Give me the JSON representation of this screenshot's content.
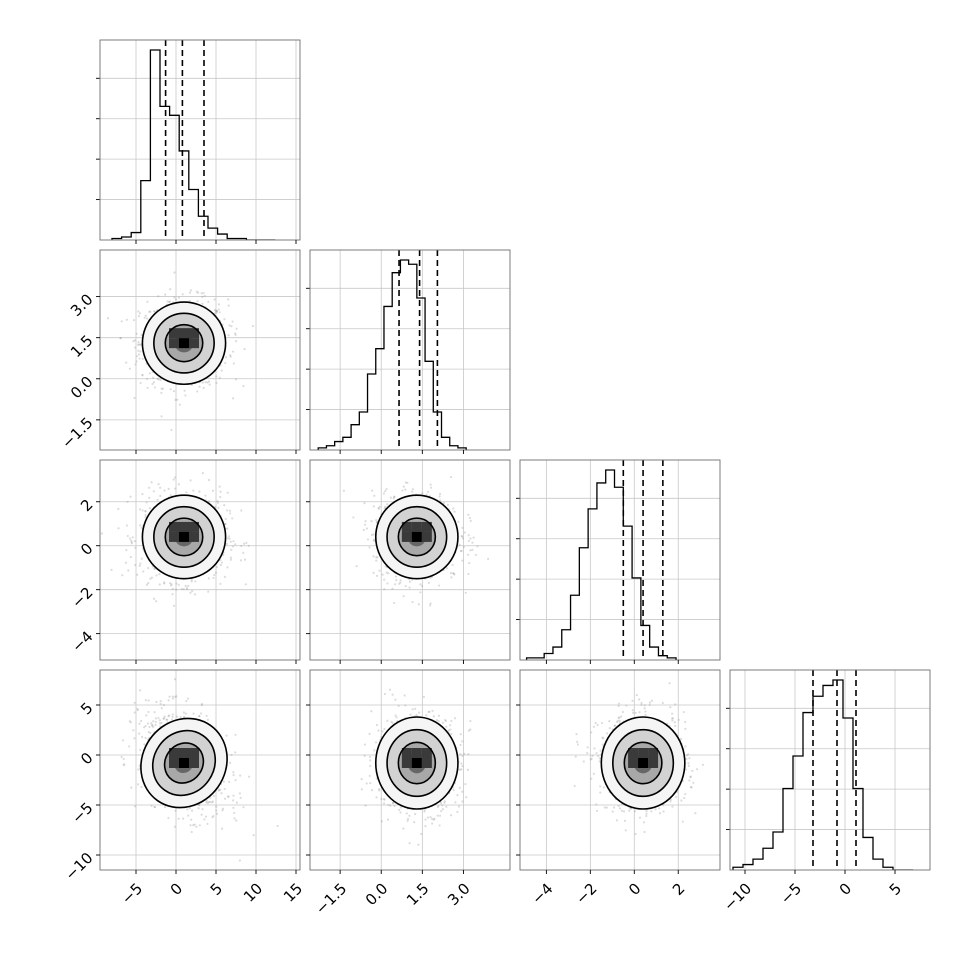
{
  "chart_data": {
    "type": "corner",
    "params": [
      {
        "name": "",
        "range": [
          -9.5,
          15.5
        ],
        "ticks": [
          -5,
          0,
          5,
          10,
          15
        ],
        "tick_labels": [
          "−5",
          "0",
          "5",
          "10",
          "15"
        ],
        "quantiles": [
          -1.3,
          0.8,
          3.5
        ],
        "mean": 1.0,
        "sd": 2.6
      },
      {
        "name": "",
        "range": [
          -2.6,
          4.7
        ],
        "ticks": [
          -1.5,
          0.0,
          1.5,
          3.0
        ],
        "tick_labels": [
          "−1.5",
          "0.0",
          "1.5",
          "3.0"
        ],
        "quantiles": [
          0.65,
          1.4,
          2.05
        ],
        "mean": 1.3,
        "sd": 0.75
      },
      {
        "name": "",
        "range": [
          -5.2,
          3.9
        ],
        "ticks": [
          -4,
          -2,
          0,
          2
        ],
        "tick_labels": [
          "−4",
          "−2",
          "0",
          "2"
        ],
        "quantiles": [
          -0.5,
          0.4,
          1.3
        ],
        "mean": 0.4,
        "sd": 0.95
      },
      {
        "name": "",
        "range": [
          -11.5,
          8.5
        ],
        "ticks": [
          -10,
          -5,
          0,
          5
        ],
        "tick_labels": [
          "−10",
          "−5",
          "0",
          "5"
        ],
        "quantiles": [
          -3.2,
          -0.8,
          1.1
        ],
        "mean": -0.8,
        "sd": 2.3
      }
    ],
    "histograms": [
      {
        "param": 0,
        "bins_left": -8,
        "bin_width": 1.2,
        "counts": [
          1,
          2,
          5,
          40,
          128,
          90,
          84,
          60,
          34,
          16,
          8,
          4,
          1,
          1,
          0,
          0,
          0
        ]
      },
      {
        "param": 1,
        "bins_left": -2.3,
        "bin_width": 0.3,
        "counts": [
          1,
          2,
          4,
          6,
          12,
          18,
          36,
          48,
          68,
          84,
          90,
          88,
          72,
          42,
          18,
          6,
          2,
          1
        ]
      },
      {
        "param": 2,
        "bins_left": -4.9,
        "bin_width": 0.4,
        "counts": [
          1,
          1,
          3,
          6,
          14,
          30,
          52,
          70,
          82,
          88,
          80,
          62,
          38,
          16,
          6,
          2,
          1
        ]
      },
      {
        "param": 3,
        "bins_left": -11.2,
        "bin_width": 1.0,
        "counts": [
          1,
          2,
          4,
          8,
          14,
          30,
          42,
          58,
          64,
          68,
          70,
          56,
          30,
          12,
          4,
          1,
          0,
          0
        ]
      }
    ],
    "pairs": [
      {
        "x": 0,
        "y": 1
      },
      {
        "x": 0,
        "y": 2
      },
      {
        "x": 1,
        "y": 2
      },
      {
        "x": 0,
        "y": 3
      },
      {
        "x": 1,
        "y": 3
      },
      {
        "x": 2,
        "y": 3
      }
    ],
    "grid": true
  }
}
